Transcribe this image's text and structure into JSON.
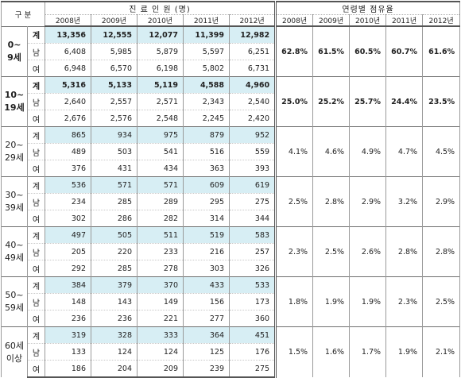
{
  "header": {
    "category": "구 분",
    "visits_title": "진 료 인 원 (명)",
    "share_title": "연령별 점유율",
    "years": [
      "2008년",
      "2009년",
      "2010년",
      "2011년",
      "2012년"
    ]
  },
  "groups": [
    {
      "age": "0~\n9세",
      "bold": true,
      "rows": [
        {
          "sex": "계",
          "values": [
            "13,356",
            "12,555",
            "12,077",
            "11,399",
            "12,982"
          ]
        },
        {
          "sex": "남",
          "values": [
            "6,408",
            "5,985",
            "5,879",
            "5,597",
            "6,251"
          ]
        },
        {
          "sex": "여",
          "values": [
            "6,948",
            "6,570",
            "6,198",
            "5,802",
            "6,731"
          ]
        }
      ],
      "shares": [
        "62.8%",
        "61.5%",
        "60.5%",
        "60.7%",
        "61.6%"
      ]
    },
    {
      "age": "10~\n19세",
      "bold": true,
      "rows": [
        {
          "sex": "계",
          "values": [
            "5,316",
            "5,133",
            "5,119",
            "4,588",
            "4,960"
          ]
        },
        {
          "sex": "남",
          "values": [
            "2,640",
            "2,557",
            "2,571",
            "2,343",
            "2,540"
          ]
        },
        {
          "sex": "여",
          "values": [
            "2,676",
            "2,576",
            "2,548",
            "2,245",
            "2,420"
          ]
        }
      ],
      "shares": [
        "25.0%",
        "25.2%",
        "25.7%",
        "24.4%",
        "23.5%"
      ]
    },
    {
      "age": "20~\n29세",
      "bold": false,
      "rows": [
        {
          "sex": "계",
          "values": [
            "865",
            "934",
            "975",
            "879",
            "952"
          ]
        },
        {
          "sex": "남",
          "values": [
            "489",
            "503",
            "541",
            "516",
            "559"
          ]
        },
        {
          "sex": "여",
          "values": [
            "376",
            "431",
            "434",
            "363",
            "393"
          ]
        }
      ],
      "shares": [
        "4.1%",
        "4.6%",
        "4.9%",
        "4.7%",
        "4.5%"
      ]
    },
    {
      "age": "30~\n39세",
      "bold": false,
      "rows": [
        {
          "sex": "계",
          "values": [
            "536",
            "571",
            "571",
            "609",
            "619"
          ]
        },
        {
          "sex": "남",
          "values": [
            "234",
            "285",
            "289",
            "295",
            "275"
          ]
        },
        {
          "sex": "여",
          "values": [
            "302",
            "286",
            "282",
            "314",
            "344"
          ]
        }
      ],
      "shares": [
        "2.5%",
        "2.8%",
        "2.9%",
        "3.2%",
        "2.9%"
      ]
    },
    {
      "age": "40~\n49세",
      "bold": false,
      "rows": [
        {
          "sex": "계",
          "values": [
            "497",
            "505",
            "511",
            "519",
            "583"
          ]
        },
        {
          "sex": "남",
          "values": [
            "205",
            "220",
            "233",
            "216",
            "257"
          ]
        },
        {
          "sex": "여",
          "values": [
            "292",
            "285",
            "278",
            "303",
            "326"
          ]
        }
      ],
      "shares": [
        "2.3%",
        "2.5%",
        "2.6%",
        "2.8%",
        "2.8%"
      ]
    },
    {
      "age": "50~\n59세",
      "bold": false,
      "rows": [
        {
          "sex": "계",
          "values": [
            "384",
            "379",
            "370",
            "433",
            "533"
          ]
        },
        {
          "sex": "남",
          "values": [
            "148",
            "143",
            "149",
            "156",
            "173"
          ]
        },
        {
          "sex": "여",
          "values": [
            "236",
            "236",
            "221",
            "277",
            "360"
          ]
        }
      ],
      "shares": [
        "1.8%",
        "1.9%",
        "1.9%",
        "2.3%",
        "2.5%"
      ]
    },
    {
      "age": "60세\n이상",
      "bold": false,
      "rows": [
        {
          "sex": "계",
          "values": [
            "319",
            "328",
            "333",
            "364",
            "451"
          ]
        },
        {
          "sex": "남",
          "values": [
            "133",
            "124",
            "124",
            "125",
            "176"
          ]
        },
        {
          "sex": "여",
          "values": [
            "186",
            "204",
            "209",
            "239",
            "275"
          ]
        }
      ],
      "shares": [
        "1.5%",
        "1.6%",
        "1.7%",
        "1.9%",
        "2.1%"
      ]
    }
  ],
  "colors": {
    "total_row_fill": "#d7eef4",
    "rule": "#555555"
  }
}
